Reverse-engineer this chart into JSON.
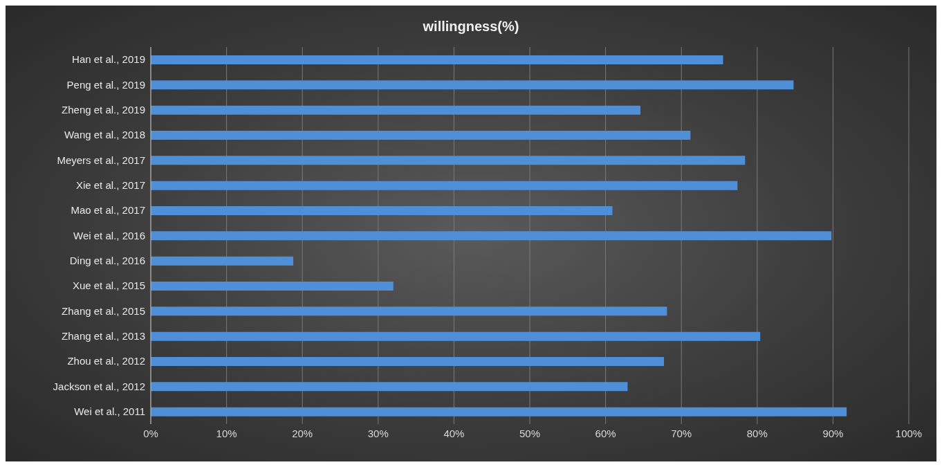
{
  "chart_data": {
    "type": "bar",
    "orientation": "horizontal",
    "title": "willingness(%)",
    "categories": [
      "Han et al., 2019",
      "Peng et al., 2019",
      "Zheng et al., 2019",
      "Wang et al., 2018",
      "Meyers et al., 2017",
      "Xie et al., 2017",
      "Mao et al., 2017",
      "Wei et al., 2016",
      "Ding et al., 2016",
      "Xue et al., 2015",
      "Zhang et al., 2015",
      "Zhang et al., 2013",
      "Zhou et al., 2012",
      "Jackson et al., 2012",
      "Wei et al., 2011"
    ],
    "values": [
      75.5,
      84.8,
      64.6,
      71.2,
      78.4,
      77.4,
      60.9,
      89.8,
      18.8,
      32.0,
      68.1,
      80.4,
      67.7,
      62.9,
      91.8
    ],
    "color": "#4f8fd8",
    "xlim": [
      0,
      100
    ],
    "xticks": [
      {
        "value": 0,
        "label": "0%"
      },
      {
        "value": 10,
        "label": "10%"
      },
      {
        "value": 20,
        "label": "20%"
      },
      {
        "value": 30,
        "label": "30%"
      },
      {
        "value": 40,
        "label": "40%"
      },
      {
        "value": 50,
        "label": "50%"
      },
      {
        "value": 60,
        "label": "60%"
      },
      {
        "value": 70,
        "label": "70%"
      },
      {
        "value": 80,
        "label": "80%"
      },
      {
        "value": 90,
        "label": "90%"
      },
      {
        "value": 100,
        "label": "100%"
      }
    ],
    "grid": "x"
  }
}
